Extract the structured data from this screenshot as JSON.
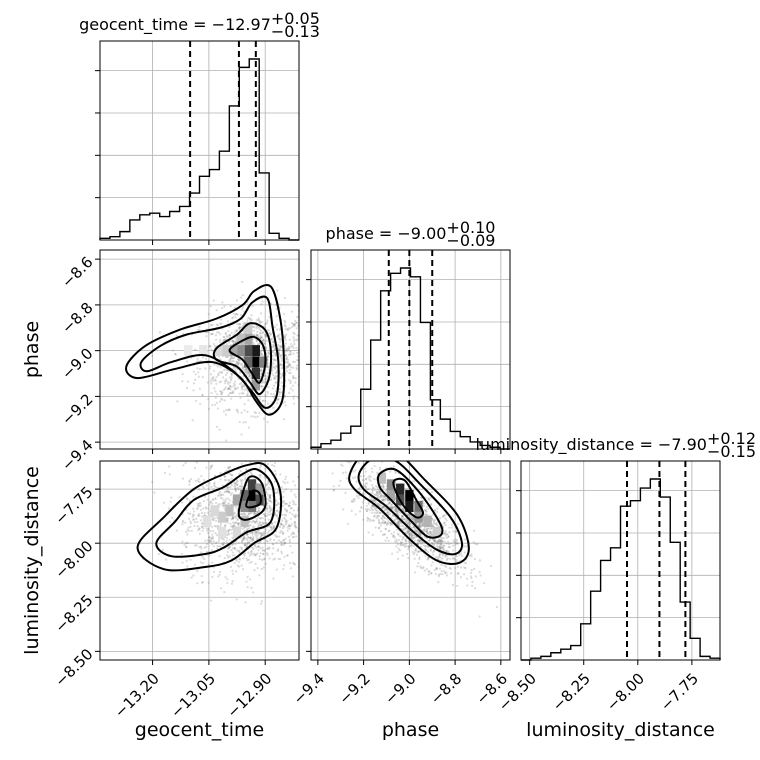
{
  "chart_data": {
    "type": "corner",
    "parameters": [
      {
        "name": "geocent_time",
        "label": "geocent_time",
        "title_prefix": "geocent_time = ",
        "median": "−12.97",
        "plus": "+0.05",
        "minus": "−0.13",
        "range": [
          -13.34,
          -12.81
        ],
        "ticks": [
          -13.2,
          -13.05,
          -12.9
        ],
        "tick_labels": [
          "−13.20",
          "−13.05",
          "−12.90"
        ],
        "quantiles": [
          -13.1,
          -12.97,
          -12.925
        ],
        "hist_edges_start": -13.34,
        "hist_bin_width": 0.0265,
        "hist_counts": [
          1,
          2,
          5,
          12,
          15,
          16,
          14,
          17,
          20,
          28,
          38,
          42,
          53,
          80,
          103,
          108,
          40,
          4,
          1,
          0
        ]
      },
      {
        "name": "phase",
        "label": "phase",
        "title_prefix": "phase = ",
        "median": "−9.00",
        "plus": "+0.10",
        "minus": "−0.09",
        "range": [
          -9.43,
          -8.56
        ],
        "ticks": [
          -9.4,
          -9.2,
          -9.0,
          -8.8,
          -8.6
        ],
        "tick_labels": [
          "−9.4",
          "−9.2",
          "−9.0",
          "−8.8",
          "−8.6"
        ],
        "quantiles": [
          -9.09,
          -9.0,
          -8.9
        ],
        "hist_edges_start": -9.43,
        "hist_bin_width": 0.0435,
        "hist_counts": [
          1,
          3,
          5,
          9,
          13,
          34,
          62,
          90,
          100,
          103,
          98,
          72,
          28,
          17,
          10,
          7,
          4,
          2,
          1,
          0
        ]
      },
      {
        "name": "luminosity_distance",
        "label": "luminosity_distance",
        "title_prefix": "luminosity_distance = ",
        "median": "−7.90",
        "plus": "+0.12",
        "minus": "−0.15",
        "range": [
          -8.54,
          -7.62
        ],
        "ticks": [
          -8.5,
          -8.25,
          -8.0,
          -7.75
        ],
        "tick_labels": [
          "−8.50",
          "−8.25",
          "−8.00",
          "−7.75"
        ],
        "tick_labels_y": [
          "−8.50",
          "−8.25",
          "−8.00",
          "−7.75"
        ],
        "quantiles": [
          -8.05,
          -7.9,
          -7.78
        ],
        "hist_edges_start": -8.54,
        "hist_bin_width": 0.046,
        "hist_counts": [
          0,
          1,
          2,
          4,
          6,
          8,
          20,
          38,
          55,
          62,
          85,
          88,
          95,
          100,
          90,
          65,
          32,
          12,
          2,
          1
        ]
      }
    ],
    "pairs": [
      {
        "x": "geocent_time",
        "y": "phase",
        "center": [
          -12.93,
          -9.04
        ],
        "peak": [
          -12.925,
          -9.05
        ],
        "density_cells": [
          [
            -12.925,
            -9.05,
            1.0
          ],
          [
            -12.925,
            -9.0,
            0.9
          ],
          [
            -12.925,
            -9.1,
            0.8
          ],
          [
            -12.945,
            -9.0,
            0.7
          ],
          [
            -12.945,
            -9.05,
            0.6
          ],
          [
            -12.905,
            -9.05,
            0.5
          ],
          [
            -12.965,
            -9.0,
            0.45
          ],
          [
            -12.985,
            -9.0,
            0.35
          ],
          [
            -12.945,
            -8.95,
            0.35
          ],
          [
            -12.965,
            -8.95,
            0.25
          ],
          [
            -13.005,
            -9.0,
            0.2
          ],
          [
            -12.945,
            -8.9,
            0.2
          ],
          [
            -12.925,
            -9.15,
            0.4
          ],
          [
            -13.025,
            -9.0,
            0.15
          ],
          [
            -13.065,
            -9.0,
            0.1
          ],
          [
            -13.105,
            -9.0,
            0.08
          ]
        ],
        "contour_levels": [
          [
            [
              -12.995,
              -9.0
            ],
            [
              -12.965,
              -8.96
            ],
            [
              -12.93,
              -8.94
            ],
            [
              -12.905,
              -8.98
            ],
            [
              -12.9,
              -9.06
            ],
            [
              -12.915,
              -9.14
            ],
            [
              -12.935,
              -9.1
            ],
            [
              -12.96,
              -9.04
            ]
          ],
          [
            [
              -13.03,
              -8.99
            ],
            [
              -12.975,
              -8.93
            ],
            [
              -12.94,
              -8.88
            ],
            [
              -12.9,
              -8.91
            ],
            [
              -12.885,
              -9.0
            ],
            [
              -12.89,
              -9.12
            ],
            [
              -12.915,
              -9.19
            ],
            [
              -12.94,
              -9.14
            ],
            [
              -12.975,
              -9.07
            ],
            [
              -13.03,
              -9.04
            ]
          ],
          [
            [
              -13.23,
              -9.05
            ],
            [
              -13.18,
              -8.98
            ],
            [
              -13.11,
              -8.93
            ],
            [
              -13.02,
              -8.9
            ],
            [
              -12.965,
              -8.86
            ],
            [
              -12.935,
              -8.79
            ],
            [
              -12.895,
              -8.77
            ],
            [
              -12.88,
              -8.9
            ],
            [
              -12.865,
              -9.05
            ],
            [
              -12.87,
              -9.2
            ],
            [
              -12.9,
              -9.25
            ],
            [
              -12.935,
              -9.18
            ],
            [
              -12.985,
              -9.09
            ],
            [
              -13.06,
              -9.02
            ],
            [
              -13.15,
              -9.05
            ],
            [
              -13.215,
              -9.09
            ]
          ],
          [
            [
              -13.27,
              -9.07
            ],
            [
              -13.22,
              -8.98
            ],
            [
              -13.13,
              -8.91
            ],
            [
              -13.03,
              -8.86
            ],
            [
              -12.96,
              -8.8
            ],
            [
              -12.93,
              -8.74
            ],
            [
              -12.885,
              -8.72
            ],
            [
              -12.86,
              -8.86
            ],
            [
              -12.85,
              -9.05
            ],
            [
              -12.855,
              -9.22
            ],
            [
              -12.89,
              -9.28
            ],
            [
              -12.925,
              -9.22
            ],
            [
              -12.965,
              -9.12
            ],
            [
              -13.04,
              -9.05
            ],
            [
              -13.14,
              -9.08
            ],
            [
              -13.24,
              -9.12
            ]
          ]
        ],
        "scatter_spread": [
          0.09,
          0.13
        ]
      },
      {
        "x": "geocent_time",
        "y": "luminosity_distance",
        "center": [
          -12.96,
          -7.88
        ],
        "peak": [
          -12.935,
          -7.78
        ],
        "density_cells": [
          [
            -12.935,
            -7.78,
            1.0
          ],
          [
            -12.935,
            -7.73,
            0.75
          ],
          [
            -12.915,
            -7.8,
            0.7
          ],
          [
            -12.955,
            -7.78,
            0.6
          ],
          [
            -12.935,
            -7.83,
            0.55
          ],
          [
            -12.955,
            -7.83,
            0.45
          ],
          [
            -12.975,
            -7.8,
            0.35
          ],
          [
            -12.915,
            -7.75,
            0.4
          ],
          [
            -12.995,
            -7.85,
            0.25
          ],
          [
            -13.015,
            -7.88,
            0.2
          ],
          [
            -12.955,
            -7.9,
            0.25
          ],
          [
            -13.035,
            -7.85,
            0.15
          ],
          [
            -13.055,
            -7.9,
            0.12
          ],
          [
            -13.015,
            -7.95,
            0.12
          ],
          [
            -12.975,
            -7.95,
            0.15
          ]
        ],
        "contour_levels": [
          [
            [
              -12.95,
              -7.83
            ],
            [
              -12.935,
              -7.76
            ],
            [
              -12.915,
              -7.77
            ],
            [
              -12.915,
              -7.82
            ]
          ],
          [
            [
              -12.97,
              -7.85
            ],
            [
              -12.945,
              -7.7
            ],
            [
              -12.91,
              -7.72
            ],
            [
              -12.9,
              -7.83
            ],
            [
              -12.93,
              -7.88
            ],
            [
              -12.96,
              -7.89
            ]
          ],
          [
            [
              -13.19,
              -8.0
            ],
            [
              -13.14,
              -7.9
            ],
            [
              -13.09,
              -7.8
            ],
            [
              -13.01,
              -7.74
            ],
            [
              -12.96,
              -7.68
            ],
            [
              -12.92,
              -7.66
            ],
            [
              -12.88,
              -7.74
            ],
            [
              -12.885,
              -7.9
            ],
            [
              -12.95,
              -7.95
            ],
            [
              -13.01,
              -8.02
            ],
            [
              -13.06,
              -8.05
            ],
            [
              -13.15,
              -8.06
            ]
          ],
          [
            [
              -13.24,
              -8.02
            ],
            [
              -13.17,
              -7.88
            ],
            [
              -13.09,
              -7.75
            ],
            [
              -13.01,
              -7.68
            ],
            [
              -12.95,
              -7.64
            ],
            [
              -12.9,
              -7.64
            ],
            [
              -12.86,
              -7.76
            ],
            [
              -12.87,
              -7.93
            ],
            [
              -12.93,
              -8.0
            ],
            [
              -12.99,
              -8.08
            ],
            [
              -13.06,
              -8.11
            ],
            [
              -13.17,
              -8.12
            ]
          ]
        ],
        "scatter_spread": [
          0.1,
          0.16
        ]
      },
      {
        "x": "phase",
        "y": "luminosity_distance",
        "center": [
          -9.0,
          -7.9
        ],
        "peak": [
          -9.02,
          -7.78
        ],
        "density_cells": [
          [
            -9.04,
            -7.75,
            0.85
          ],
          [
            -9.0,
            -7.78,
            1.0
          ],
          [
            -9.0,
            -7.83,
            0.9
          ],
          [
            -9.04,
            -7.8,
            0.7
          ],
          [
            -8.96,
            -7.83,
            0.55
          ],
          [
            -9.08,
            -7.73,
            0.45
          ],
          [
            -8.96,
            -7.88,
            0.4
          ],
          [
            -9.08,
            -7.78,
            0.35
          ],
          [
            -8.92,
            -7.9,
            0.3
          ],
          [
            -9.12,
            -7.7,
            0.25
          ],
          [
            -8.88,
            -7.95,
            0.2
          ]
        ],
        "contour_levels": [
          [
            [
              -9.07,
              -7.72
            ],
            [
              -9.02,
              -7.71
            ],
            [
              -8.97,
              -7.8
            ],
            [
              -8.94,
              -7.86
            ],
            [
              -8.97,
              -7.88
            ],
            [
              -9.03,
              -7.82
            ]
          ],
          [
            [
              -9.13,
              -7.68
            ],
            [
              -9.06,
              -7.66
            ],
            [
              -8.96,
              -7.76
            ],
            [
              -8.87,
              -7.9
            ],
            [
              -8.86,
              -7.96
            ],
            [
              -8.92,
              -7.97
            ],
            [
              -8.99,
              -7.9
            ],
            [
              -9.08,
              -7.8
            ],
            [
              -9.13,
              -7.74
            ]
          ],
          [
            [
              -9.22,
              -7.68
            ],
            [
              -9.16,
              -7.61
            ],
            [
              -9.06,
              -7.62
            ],
            [
              -8.95,
              -7.73
            ],
            [
              -8.82,
              -7.88
            ],
            [
              -8.77,
              -8.0
            ],
            [
              -8.8,
              -8.05
            ],
            [
              -8.88,
              -8.03
            ],
            [
              -8.98,
              -7.95
            ],
            [
              -9.1,
              -7.83
            ],
            [
              -9.2,
              -7.75
            ]
          ],
          [
            [
              -9.26,
              -7.68
            ],
            [
              -9.19,
              -7.58
            ],
            [
              -9.06,
              -7.58
            ],
            [
              -8.93,
              -7.71
            ],
            [
              -8.79,
              -7.87
            ],
            [
              -8.74,
              -8.02
            ],
            [
              -8.78,
              -8.09
            ],
            [
              -8.88,
              -8.08
            ],
            [
              -9.0,
              -7.98
            ],
            [
              -9.13,
              -7.84
            ],
            [
              -9.24,
              -7.75
            ]
          ]
        ],
        "rho": -0.75,
        "scatter_spread": [
          0.15,
          0.14
        ]
      }
    ]
  }
}
